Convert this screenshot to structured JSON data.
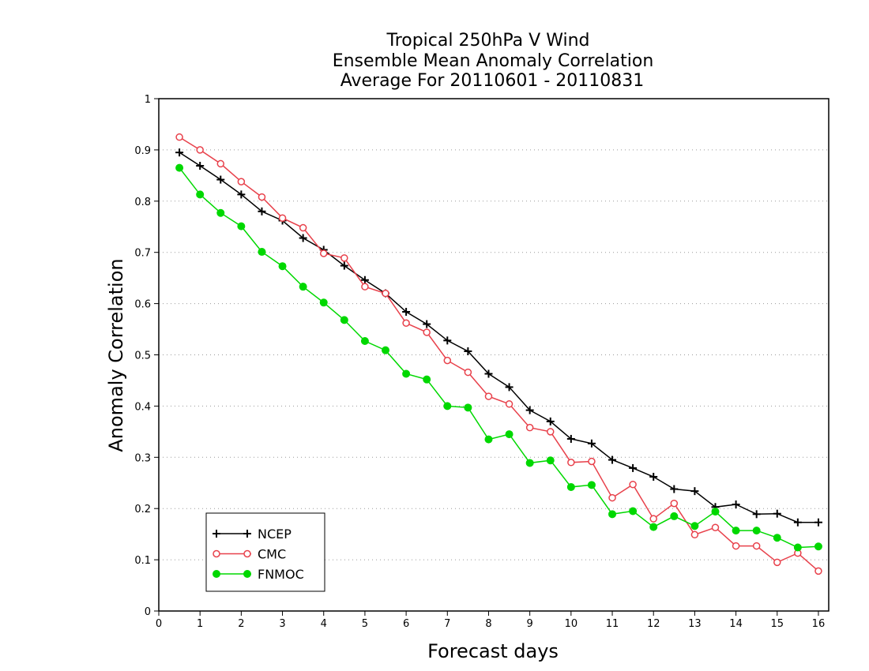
{
  "chart_data": {
    "type": "line",
    "title_lines": [
      "Tropical 250hPa V Wind",
      "Ensemble Mean Anomaly Correlation",
      "Average For 20110601 - 20110831"
    ],
    "xlabel": "Forecast days",
    "ylabel": "Anomaly Correlation",
    "xlim": [
      0,
      16.25
    ],
    "ylim": [
      0,
      1
    ],
    "x_ticks": [
      0,
      1,
      2,
      3,
      4,
      5,
      6,
      7,
      8,
      9,
      10,
      11,
      12,
      13,
      14,
      15,
      16
    ],
    "y_ticks": [
      0,
      0.1,
      0.2,
      0.3,
      0.4,
      0.5,
      0.6,
      0.7,
      0.8,
      0.9,
      1
    ],
    "y_tick_labels": [
      "0",
      "0.1",
      "0.2",
      "0.3",
      "0.4",
      "0.5",
      "0.6",
      "0.7",
      "0.8",
      "0.9",
      "1"
    ],
    "grid": "horizontal-dotted",
    "legend_position": "bottom-left",
    "x": [
      0.5,
      1,
      1.5,
      2,
      2.5,
      3,
      3.5,
      4,
      4.5,
      5,
      5.5,
      6,
      6.5,
      7,
      7.5,
      8,
      8.5,
      9,
      9.5,
      10,
      10.5,
      11,
      11.5,
      12,
      12.5,
      13,
      13.5,
      14,
      14.5,
      15,
      15.5,
      16
    ],
    "series": [
      {
        "name": "NCEP",
        "color": "#000000",
        "marker": "plus",
        "values": [
          0.895,
          0.869,
          0.842,
          0.813,
          0.78,
          0.762,
          0.728,
          0.705,
          0.674,
          0.646,
          0.62,
          0.584,
          0.56,
          0.528,
          0.507,
          0.463,
          0.437,
          0.392,
          0.37,
          0.336,
          0.327,
          0.295,
          0.279,
          0.262,
          0.238,
          0.234,
          0.203,
          0.208,
          0.189,
          0.19,
          0.173,
          0.173
        ]
      },
      {
        "name": "CMC",
        "color": "#e8414b",
        "marker": "circle-open",
        "values": [
          0.925,
          0.9,
          0.873,
          0.838,
          0.808,
          0.767,
          0.748,
          0.698,
          0.689,
          0.633,
          0.62,
          0.562,
          0.544,
          0.489,
          0.466,
          0.419,
          0.404,
          0.358,
          0.35,
          0.29,
          0.292,
          0.221,
          0.247,
          0.18,
          0.21,
          0.149,
          0.163,
          0.127,
          0.127,
          0.095,
          0.113,
          0.078
        ]
      },
      {
        "name": "FNMOC",
        "color": "#00d800",
        "marker": "circle-filled",
        "values": [
          0.865,
          0.813,
          0.777,
          0.751,
          0.701,
          0.673,
          0.633,
          0.602,
          0.568,
          0.527,
          0.509,
          0.463,
          0.452,
          0.4,
          0.397,
          0.335,
          0.345,
          0.289,
          0.294,
          0.242,
          0.246,
          0.189,
          0.195,
          0.164,
          0.185,
          0.166,
          0.194,
          0.157,
          0.157,
          0.143,
          0.124,
          0.126
        ]
      }
    ]
  }
}
